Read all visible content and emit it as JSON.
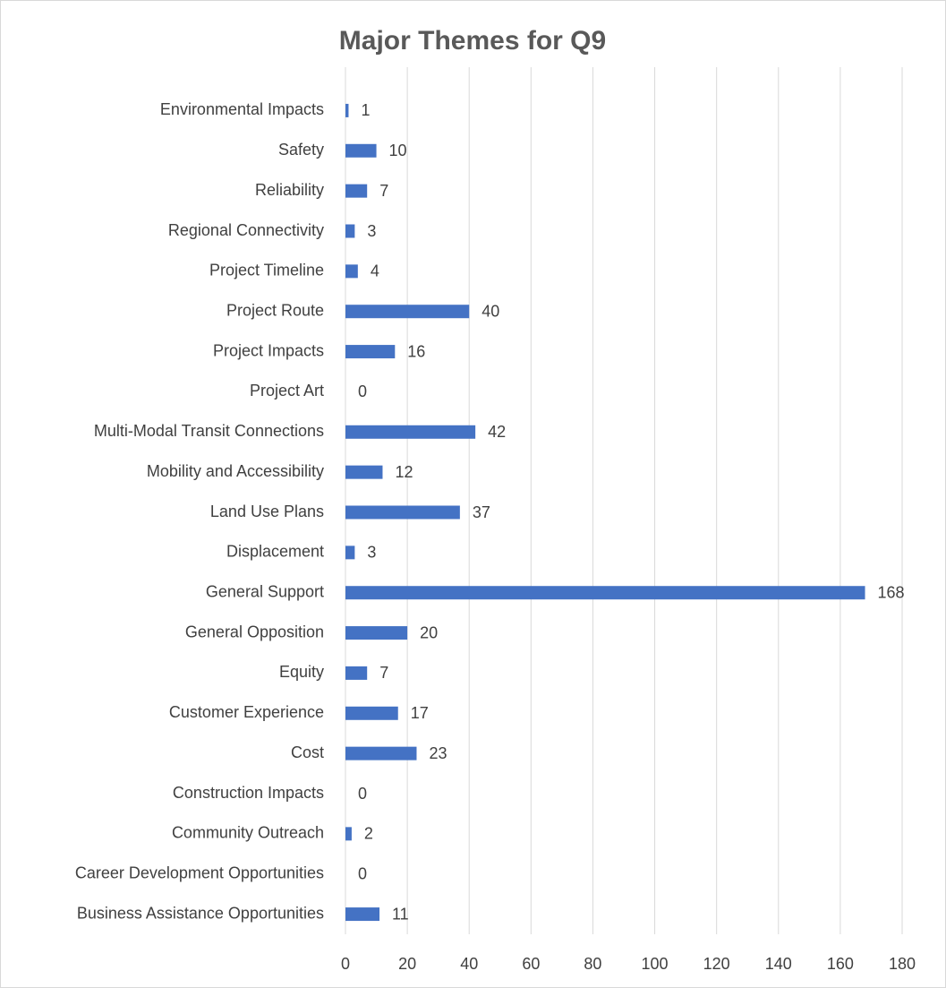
{
  "chart_data": {
    "type": "bar",
    "orientation": "horizontal",
    "title": "Major Themes for Q9",
    "categories": [
      "Environmental Impacts",
      "Safety",
      "Reliability",
      "Regional Connectivity",
      "Project Timeline",
      "Project Route",
      "Project Impacts",
      "Project Art",
      "Multi-Modal Transit Connections",
      "Mobility and Accessibility",
      "Land Use Plans",
      "Displacement",
      "General Support",
      "General Opposition",
      "Equity",
      "Customer Experience",
      "Cost",
      "Construction Impacts",
      "Community Outreach",
      "Career Development Opportunities",
      "Business Assistance Opportunities"
    ],
    "values": [
      1,
      10,
      7,
      3,
      4,
      40,
      16,
      0,
      42,
      12,
      37,
      3,
      168,
      20,
      7,
      17,
      23,
      0,
      2,
      0,
      11
    ],
    "color": "#4472c4",
    "xlim": [
      0,
      180
    ],
    "xticks": [
      0,
      20,
      40,
      60,
      80,
      100,
      120,
      140,
      160,
      180
    ],
    "grid": true
  }
}
